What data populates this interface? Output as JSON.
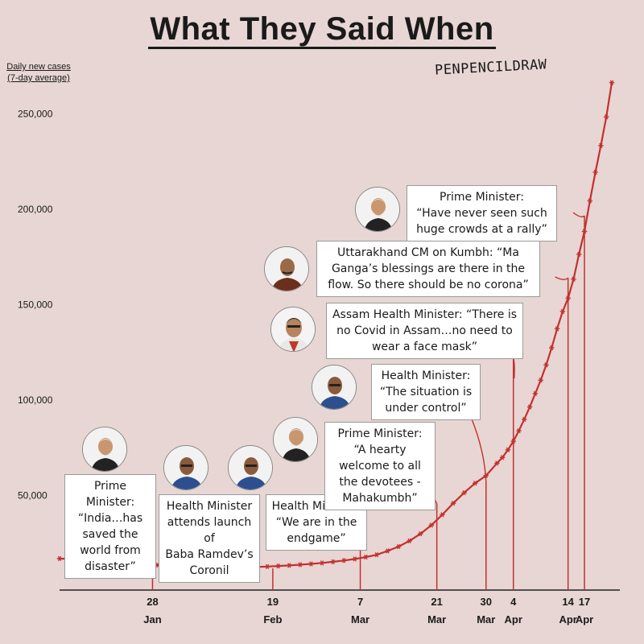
{
  "header": {
    "title": "What They Said When",
    "signature": "PENPENCILDRAW",
    "y_axis_label": "Daily new cases (7-day average)"
  },
  "chart_data": {
    "type": "line",
    "title": "What They Said When",
    "ylabel": "Daily new cases (7-day average)",
    "xlabel": "",
    "ylim": [
      0,
      260000
    ],
    "yticks": [
      50000,
      100000,
      150000,
      200000,
      250000
    ],
    "ytick_labels": [
      "50,000",
      "100,000",
      "150,000",
      "200,000",
      "250,000"
    ],
    "x_start": "2021-01-11",
    "x_end": "2021-04-22",
    "xticks": [
      {
        "day": 17,
        "line1": "28",
        "line2": "Jan"
      },
      {
        "day": 39,
        "line1": "19",
        "line2": "Feb"
      },
      {
        "day": 55,
        "line1": "7",
        "line2": "Mar"
      },
      {
        "day": 69,
        "line1": "21",
        "line2": "Mar"
      },
      {
        "day": 78,
        "line1": "30",
        "line2": "Mar"
      },
      {
        "day": 83,
        "line1": "4",
        "line2": "Apr"
      },
      {
        "day": 93,
        "line1": "14",
        "line2": "Apr"
      },
      {
        "day": 96,
        "line1": "17",
        "line2": "Apr"
      }
    ],
    "series": [
      {
        "name": "Daily new cases (7-day average)",
        "x": [
          0,
          2,
          4,
          6,
          8,
          10,
          12,
          14,
          16,
          18,
          20,
          22,
          24,
          26,
          28,
          30,
          32,
          34,
          36,
          38,
          40,
          42,
          44,
          46,
          48,
          50,
          52,
          54,
          56,
          58,
          60,
          62,
          64,
          66,
          68,
          70,
          72,
          74,
          76,
          78,
          80,
          81,
          82,
          83,
          84,
          85,
          86,
          87,
          88,
          89,
          90,
          91,
          92,
          93,
          94,
          95,
          96,
          97,
          98,
          99,
          100,
          101
        ],
        "values": [
          16500,
          16300,
          16000,
          15700,
          15400,
          15000,
          14500,
          14000,
          13600,
          13100,
          12700,
          12200,
          11800,
          11600,
          11500,
          11500,
          11700,
          11900,
          12100,
          12300,
          12600,
          12900,
          13300,
          13700,
          14200,
          14800,
          15500,
          16300,
          17300,
          18500,
          20500,
          22800,
          25800,
          29500,
          34000,
          39500,
          45500,
          51000,
          56000,
          60000,
          66500,
          69500,
          73500,
          78000,
          83500,
          89500,
          96000,
          103000,
          110000,
          118000,
          127000,
          137000,
          146000,
          153000,
          163000,
          176000,
          188000,
          204000,
          219000,
          233000,
          248000,
          266000
        ]
      }
    ]
  },
  "quotes": [
    {
      "speaker": "Prime Minister:",
      "text": "“India…has saved the world from disaster”",
      "day": 17
    },
    {
      "speaker": "Health Minister attends launch of",
      "text": "Baba Ramdev’s Coronil",
      "day": 39
    },
    {
      "speaker": "Health Minister:",
      "text": "“We are in the endgame”",
      "day": 55
    },
    {
      "speaker": "Prime Minister:",
      "text": "“A hearty welcome to all the devotees - Mahakumbh”",
      "day": 69
    },
    {
      "speaker": "Health Minister:",
      "text": "“The situation is under control”",
      "day": 78
    },
    {
      "speaker": "Assam Health Minister:",
      "text": "“There is no Covid in Assam…no need to wear a face mask”",
      "day": 83
    },
    {
      "speaker": "Uttarakhand CM on Kumbh:",
      "text": "“Ma Ganga’s blessings are there in the flow. So there should be no corona”",
      "day": 93
    },
    {
      "speaker": "Prime Minister:",
      "text": "“Have never seen such huge crowds at a rally”",
      "day": 96
    }
  ],
  "colors": {
    "background": "#e7d6d3",
    "line": "#c4302e",
    "text": "#1a1a1a",
    "box": "#ffffff"
  }
}
